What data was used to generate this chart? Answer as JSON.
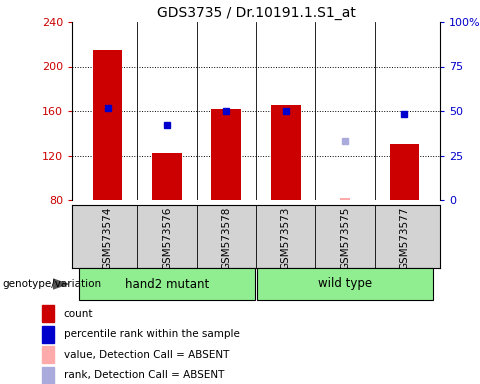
{
  "title": "GDS3735 / Dr.10191.1.S1_at",
  "samples": [
    "GSM573574",
    "GSM573576",
    "GSM573578",
    "GSM573573",
    "GSM573575",
    "GSM573577"
  ],
  "ylim_left": [
    80,
    240
  ],
  "ylim_right": [
    0,
    100
  ],
  "yticks_left": [
    80,
    120,
    160,
    200,
    240
  ],
  "yticks_right": [
    0,
    25,
    50,
    75,
    100
  ],
  "ytick_labels_right": [
    "0",
    "25",
    "50",
    "75",
    "100%"
  ],
  "red_bars": [
    215,
    122,
    162,
    165,
    null,
    130
  ],
  "blue_squares": [
    163,
    147,
    160,
    160,
    null,
    157
  ],
  "pink_values": [
    null,
    null,
    null,
    null,
    81,
    null
  ],
  "lightblue_ranks": [
    null,
    null,
    null,
    null,
    133,
    null
  ],
  "bar_color": "#cc0000",
  "blue_color": "#0000cc",
  "pink_color": "#ffaaaa",
  "lightblue_color": "#aaaadd",
  "bar_bottom": 80,
  "bar_width": 0.5,
  "group_color": "#90ee90",
  "sample_bg_color": "#d3d3d3",
  "group_label": "genotype/variation",
  "groups": [
    {
      "label": "hand2 mutant",
      "start": 0,
      "end": 2
    },
    {
      "label": "wild type",
      "start": 3,
      "end": 5
    }
  ],
  "legend_items": [
    {
      "color": "#cc0000",
      "label": "count"
    },
    {
      "color": "#0000cc",
      "label": "percentile rank within the sample"
    },
    {
      "color": "#ffaaaa",
      "label": "value, Detection Call = ABSENT"
    },
    {
      "color": "#aaaadd",
      "label": "rank, Detection Call = ABSENT"
    }
  ],
  "dotted_lines": [
    120,
    160,
    200
  ]
}
